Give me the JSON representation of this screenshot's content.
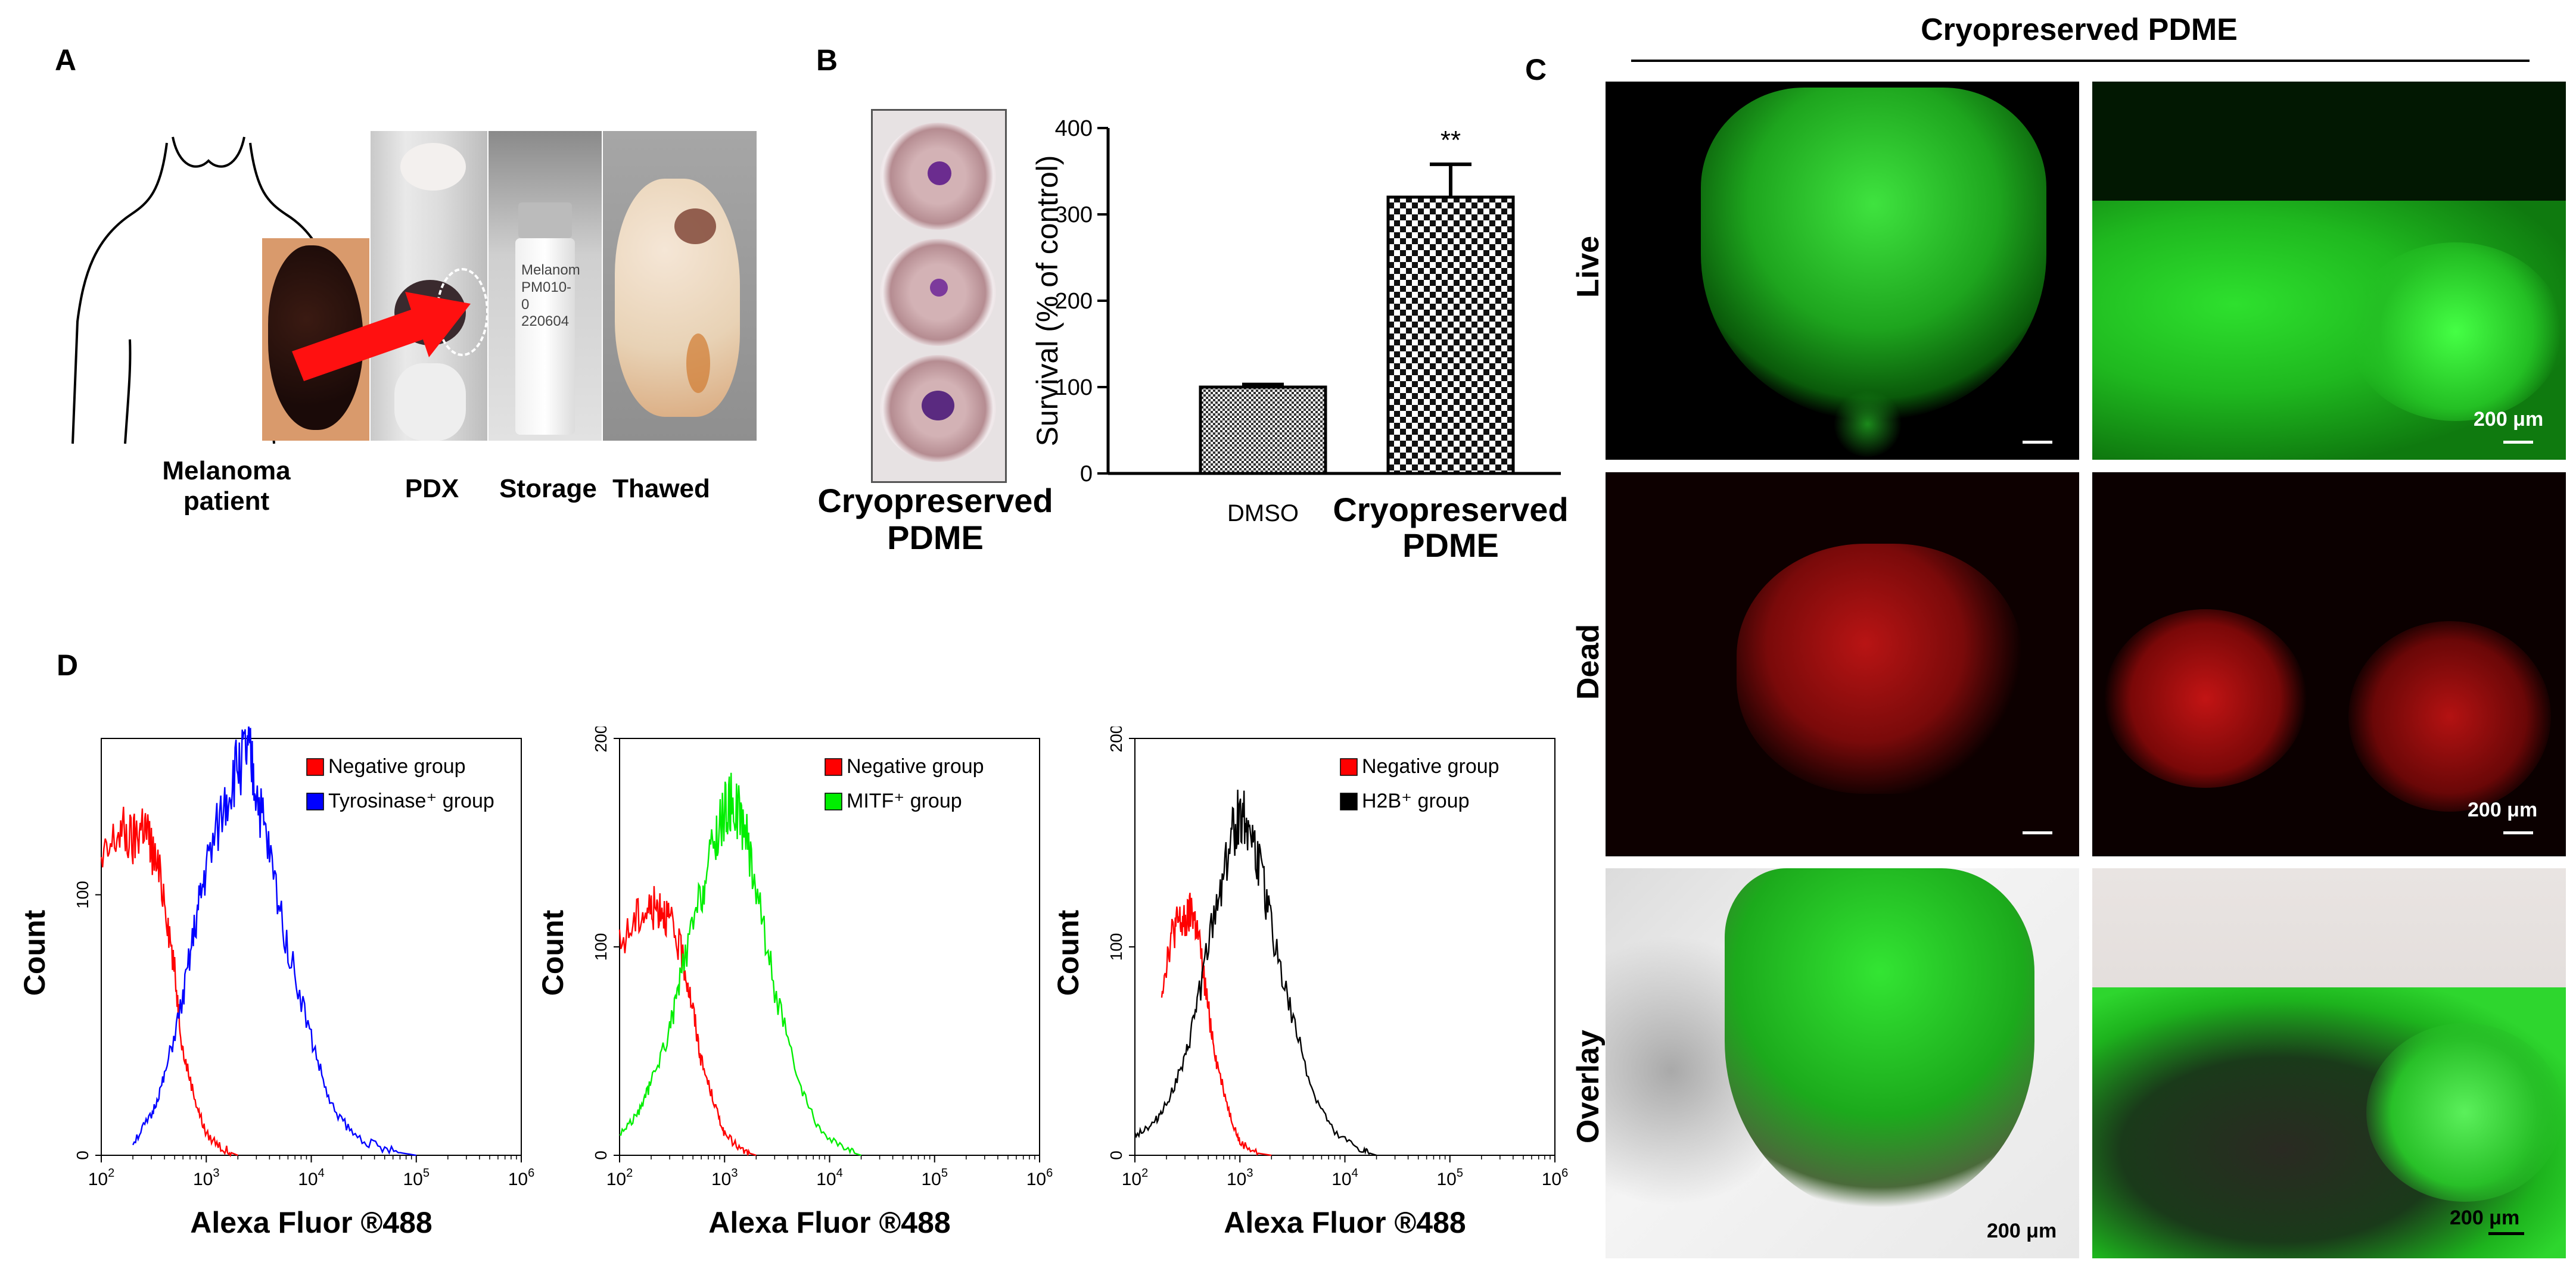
{
  "panels": {
    "A": "A",
    "B": "B",
    "C": "C",
    "D": "D"
  },
  "panelA": {
    "cap_patient_1": "Melanoma",
    "cap_patient_2": "patient",
    "cap_pdx": "PDX",
    "cap_storage": "Storage",
    "cap_thawed": "Thawed",
    "vial_text_1": "Melanom",
    "vial_text_2": "PM010-0",
    "vial_text_3": "220604"
  },
  "panelB": {
    "plate_caption_1": "Cryopreserved",
    "plate_caption_2": "PDME",
    "significance": "**"
  },
  "panelC": {
    "title": "Cryopreserved PDME",
    "row_live": "Live",
    "row_dead": "Dead",
    "row_overlay": "Overlay",
    "scale_label": "200 μm"
  },
  "chart_data": [
    {
      "type": "bar",
      "categories": [
        "DMSO",
        "Cryopreserved PDME"
      ],
      "category_lines": [
        [
          "DMSO"
        ],
        [
          "Cryopreserved",
          "PDME"
        ]
      ],
      "values": [
        100,
        320
      ],
      "errors": [
        3,
        38
      ],
      "ylabel": "Survival (% of control)",
      "ylim": [
        0,
        400
      ],
      "yticks": [
        0,
        100,
        200,
        300,
        400
      ],
      "annotations": [
        {
          "category": "Cryopreserved PDME",
          "text": "**"
        }
      ]
    },
    {
      "type": "line",
      "xlabel": "Alexa Fluor ®488",
      "ylabel": "Count",
      "xscale": "log",
      "xlim": [
        100,
        1000000
      ],
      "ylim": [
        0,
        160
      ],
      "yticks": [
        0,
        100
      ],
      "legend": "top-right",
      "series": [
        {
          "name": "Negative group",
          "color": "#ff0000",
          "points": [
            [
              100,
              110
            ],
            [
              150,
              125
            ],
            [
              200,
              120
            ],
            [
              250,
              128
            ],
            [
              300,
              118
            ],
            [
              400,
              100
            ],
            [
              500,
              70
            ],
            [
              600,
              40
            ],
            [
              800,
              20
            ],
            [
              1000,
              8
            ],
            [
              1500,
              2
            ],
            [
              2000,
              0
            ]
          ]
        },
        {
          "name": "Tyrosinase⁺ group",
          "color": "#0000ff",
          "points": [
            [
              200,
              5
            ],
            [
              300,
              15
            ],
            [
              400,
              30
            ],
            [
              600,
              60
            ],
            [
              800,
              90
            ],
            [
              1000,
              110
            ],
            [
              1500,
              135
            ],
            [
              2000,
              150
            ],
            [
              2500,
              155
            ],
            [
              3000,
              140
            ],
            [
              4000,
              115
            ],
            [
              6000,
              80
            ],
            [
              10000,
              45
            ],
            [
              15000,
              20
            ],
            [
              25000,
              8
            ],
            [
              50000,
              2
            ],
            [
              100000,
              0
            ]
          ]
        }
      ]
    },
    {
      "type": "line",
      "xlabel": "Alexa Fluor ®488",
      "ylabel": "Count",
      "xscale": "log",
      "xlim": [
        100,
        1000000
      ],
      "ylim": [
        0,
        200
      ],
      "yticks": [
        0,
        100,
        200
      ],
      "legend": "top-right",
      "series": [
        {
          "name": "Negative group",
          "color": "#ff0000",
          "points": [
            [
              100,
              100
            ],
            [
              150,
              115
            ],
            [
              200,
              118
            ],
            [
              250,
              120
            ],
            [
              300,
              112
            ],
            [
              400,
              95
            ],
            [
              500,
              70
            ],
            [
              600,
              45
            ],
            [
              800,
              25
            ],
            [
              1000,
              10
            ],
            [
              1500,
              2
            ],
            [
              2000,
              0
            ]
          ]
        },
        {
          "name": "MITF⁺ group",
          "color": "#00ee00",
          "points": [
            [
              100,
              10
            ],
            [
              150,
              20
            ],
            [
              200,
              35
            ],
            [
              300,
              60
            ],
            [
              400,
              90
            ],
            [
              600,
              125
            ],
            [
              800,
              150
            ],
            [
              1000,
              165
            ],
            [
              1200,
              170
            ],
            [
              1500,
              160
            ],
            [
              2000,
              130
            ],
            [
              3000,
              80
            ],
            [
              5000,
              35
            ],
            [
              8000,
              12
            ],
            [
              15000,
              2
            ],
            [
              20000,
              0
            ]
          ]
        }
      ]
    },
    {
      "type": "line",
      "xlabel": "Alexa Fluor ®488",
      "ylabel": "Count",
      "xscale": "log",
      "xlim": [
        100,
        1000000
      ],
      "ylim": [
        0,
        200
      ],
      "yticks": [
        0,
        100,
        200
      ],
      "legend": "top-right",
      "series": [
        {
          "name": "Negative group",
          "color": "#ff0000",
          "points": [
            [
              180,
              80
            ],
            [
              220,
              105
            ],
            [
              260,
              112
            ],
            [
              300,
              110
            ],
            [
              350,
              118
            ],
            [
              400,
              105
            ],
            [
              500,
              70
            ],
            [
              600,
              45
            ],
            [
              800,
              20
            ],
            [
              1000,
              6
            ],
            [
              1500,
              1
            ],
            [
              2000,
              0
            ]
          ]
        },
        {
          "name": "H2B⁺ group",
          "color": "#000000",
          "points": [
            [
              100,
              10
            ],
            [
              150,
              15
            ],
            [
              200,
              25
            ],
            [
              300,
              45
            ],
            [
              400,
              75
            ],
            [
              600,
              120
            ],
            [
              800,
              150
            ],
            [
              1000,
              165
            ],
            [
              1200,
              160
            ],
            [
              1500,
              140
            ],
            [
              2000,
              110
            ],
            [
              3000,
              70
            ],
            [
              5000,
              30
            ],
            [
              8000,
              10
            ],
            [
              15000,
              2
            ],
            [
              20000,
              0
            ]
          ]
        }
      ]
    }
  ]
}
